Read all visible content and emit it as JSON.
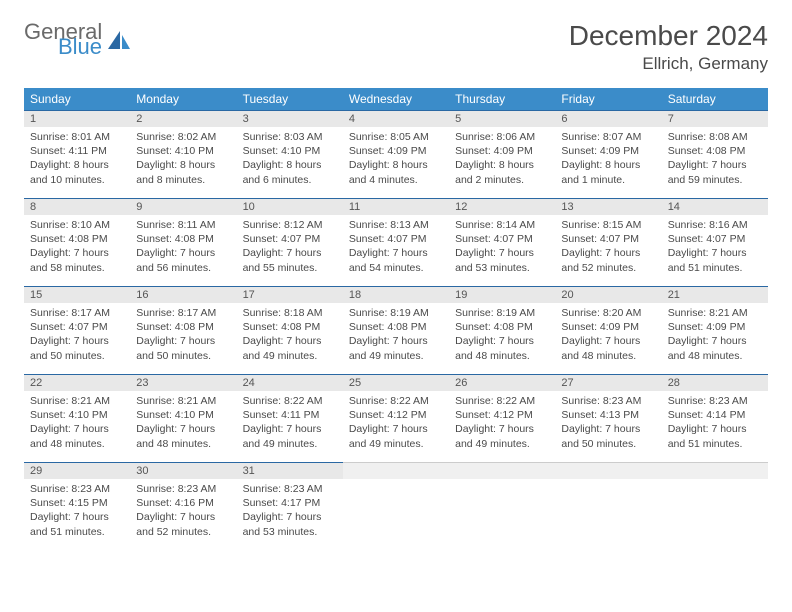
{
  "brand": {
    "part1": "General",
    "part2": "Blue"
  },
  "title": "December 2024",
  "location": "Ellrich, Germany",
  "colors": {
    "header_bg": "#3b8cc9",
    "header_text": "#ffffff",
    "daynum_bg": "#e8e8e8",
    "row_border": "#2a68a3",
    "body_text": "#4a4a4a",
    "page_bg": "#ffffff"
  },
  "fonts": {
    "title_size": 28,
    "location_size": 17,
    "th_size": 12,
    "cell_size": 10.5
  },
  "weekdays": [
    "Sunday",
    "Monday",
    "Tuesday",
    "Wednesday",
    "Thursday",
    "Friday",
    "Saturday"
  ],
  "weeks": [
    [
      {
        "day": "1",
        "sunrise": "Sunrise: 8:01 AM",
        "sunset": "Sunset: 4:11 PM",
        "daylight": "Daylight: 8 hours and 10 minutes."
      },
      {
        "day": "2",
        "sunrise": "Sunrise: 8:02 AM",
        "sunset": "Sunset: 4:10 PM",
        "daylight": "Daylight: 8 hours and 8 minutes."
      },
      {
        "day": "3",
        "sunrise": "Sunrise: 8:03 AM",
        "sunset": "Sunset: 4:10 PM",
        "daylight": "Daylight: 8 hours and 6 minutes."
      },
      {
        "day": "4",
        "sunrise": "Sunrise: 8:05 AM",
        "sunset": "Sunset: 4:09 PM",
        "daylight": "Daylight: 8 hours and 4 minutes."
      },
      {
        "day": "5",
        "sunrise": "Sunrise: 8:06 AM",
        "sunset": "Sunset: 4:09 PM",
        "daylight": "Daylight: 8 hours and 2 minutes."
      },
      {
        "day": "6",
        "sunrise": "Sunrise: 8:07 AM",
        "sunset": "Sunset: 4:09 PM",
        "daylight": "Daylight: 8 hours and 1 minute."
      },
      {
        "day": "7",
        "sunrise": "Sunrise: 8:08 AM",
        "sunset": "Sunset: 4:08 PM",
        "daylight": "Daylight: 7 hours and 59 minutes."
      }
    ],
    [
      {
        "day": "8",
        "sunrise": "Sunrise: 8:10 AM",
        "sunset": "Sunset: 4:08 PM",
        "daylight": "Daylight: 7 hours and 58 minutes."
      },
      {
        "day": "9",
        "sunrise": "Sunrise: 8:11 AM",
        "sunset": "Sunset: 4:08 PM",
        "daylight": "Daylight: 7 hours and 56 minutes."
      },
      {
        "day": "10",
        "sunrise": "Sunrise: 8:12 AM",
        "sunset": "Sunset: 4:07 PM",
        "daylight": "Daylight: 7 hours and 55 minutes."
      },
      {
        "day": "11",
        "sunrise": "Sunrise: 8:13 AM",
        "sunset": "Sunset: 4:07 PM",
        "daylight": "Daylight: 7 hours and 54 minutes."
      },
      {
        "day": "12",
        "sunrise": "Sunrise: 8:14 AM",
        "sunset": "Sunset: 4:07 PM",
        "daylight": "Daylight: 7 hours and 53 minutes."
      },
      {
        "day": "13",
        "sunrise": "Sunrise: 8:15 AM",
        "sunset": "Sunset: 4:07 PM",
        "daylight": "Daylight: 7 hours and 52 minutes."
      },
      {
        "day": "14",
        "sunrise": "Sunrise: 8:16 AM",
        "sunset": "Sunset: 4:07 PM",
        "daylight": "Daylight: 7 hours and 51 minutes."
      }
    ],
    [
      {
        "day": "15",
        "sunrise": "Sunrise: 8:17 AM",
        "sunset": "Sunset: 4:07 PM",
        "daylight": "Daylight: 7 hours and 50 minutes."
      },
      {
        "day": "16",
        "sunrise": "Sunrise: 8:17 AM",
        "sunset": "Sunset: 4:08 PM",
        "daylight": "Daylight: 7 hours and 50 minutes."
      },
      {
        "day": "17",
        "sunrise": "Sunrise: 8:18 AM",
        "sunset": "Sunset: 4:08 PM",
        "daylight": "Daylight: 7 hours and 49 minutes."
      },
      {
        "day": "18",
        "sunrise": "Sunrise: 8:19 AM",
        "sunset": "Sunset: 4:08 PM",
        "daylight": "Daylight: 7 hours and 49 minutes."
      },
      {
        "day": "19",
        "sunrise": "Sunrise: 8:19 AM",
        "sunset": "Sunset: 4:08 PM",
        "daylight": "Daylight: 7 hours and 48 minutes."
      },
      {
        "day": "20",
        "sunrise": "Sunrise: 8:20 AM",
        "sunset": "Sunset: 4:09 PM",
        "daylight": "Daylight: 7 hours and 48 minutes."
      },
      {
        "day": "21",
        "sunrise": "Sunrise: 8:21 AM",
        "sunset": "Sunset: 4:09 PM",
        "daylight": "Daylight: 7 hours and 48 minutes."
      }
    ],
    [
      {
        "day": "22",
        "sunrise": "Sunrise: 8:21 AM",
        "sunset": "Sunset: 4:10 PM",
        "daylight": "Daylight: 7 hours and 48 minutes."
      },
      {
        "day": "23",
        "sunrise": "Sunrise: 8:21 AM",
        "sunset": "Sunset: 4:10 PM",
        "daylight": "Daylight: 7 hours and 48 minutes."
      },
      {
        "day": "24",
        "sunrise": "Sunrise: 8:22 AM",
        "sunset": "Sunset: 4:11 PM",
        "daylight": "Daylight: 7 hours and 49 minutes."
      },
      {
        "day": "25",
        "sunrise": "Sunrise: 8:22 AM",
        "sunset": "Sunset: 4:12 PM",
        "daylight": "Daylight: 7 hours and 49 minutes."
      },
      {
        "day": "26",
        "sunrise": "Sunrise: 8:22 AM",
        "sunset": "Sunset: 4:12 PM",
        "daylight": "Daylight: 7 hours and 49 minutes."
      },
      {
        "day": "27",
        "sunrise": "Sunrise: 8:23 AM",
        "sunset": "Sunset: 4:13 PM",
        "daylight": "Daylight: 7 hours and 50 minutes."
      },
      {
        "day": "28",
        "sunrise": "Sunrise: 8:23 AM",
        "sunset": "Sunset: 4:14 PM",
        "daylight": "Daylight: 7 hours and 51 minutes."
      }
    ],
    [
      {
        "day": "29",
        "sunrise": "Sunrise: 8:23 AM",
        "sunset": "Sunset: 4:15 PM",
        "daylight": "Daylight: 7 hours and 51 minutes."
      },
      {
        "day": "30",
        "sunrise": "Sunrise: 8:23 AM",
        "sunset": "Sunset: 4:16 PM",
        "daylight": "Daylight: 7 hours and 52 minutes."
      },
      {
        "day": "31",
        "sunrise": "Sunrise: 8:23 AM",
        "sunset": "Sunset: 4:17 PM",
        "daylight": "Daylight: 7 hours and 53 minutes."
      },
      {
        "day": "",
        "sunrise": "",
        "sunset": "",
        "daylight": ""
      },
      {
        "day": "",
        "sunrise": "",
        "sunset": "",
        "daylight": ""
      },
      {
        "day": "",
        "sunrise": "",
        "sunset": "",
        "daylight": ""
      },
      {
        "day": "",
        "sunrise": "",
        "sunset": "",
        "daylight": ""
      }
    ]
  ]
}
